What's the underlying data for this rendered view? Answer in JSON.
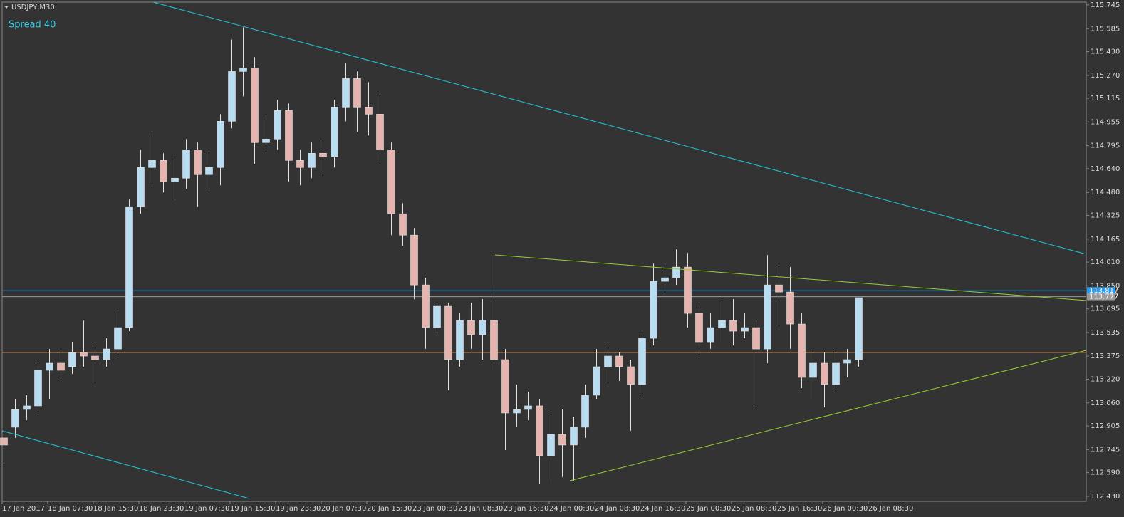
{
  "chart_data": {
    "type": "candlestick",
    "title": "USDJPY,M30",
    "annotation": "Spread 40",
    "categories": [
      "17 Jan 2017",
      null,
      null,
      null,
      "18 Jan 07:30",
      null,
      null,
      null,
      "18 Jan 15:30",
      null,
      null,
      null,
      "18 Jan 23:30",
      null,
      null,
      null,
      "19 Jan 07:30",
      null,
      null,
      null,
      "19 Jan 15:30",
      null,
      null,
      null,
      "19 Jan 23:30",
      null,
      null,
      null,
      "20 Jan 07:30",
      null,
      null,
      null,
      "20 Jan 15:30",
      null,
      null,
      null,
      "23 Jan 00:30",
      null,
      null,
      null,
      "23 Jan 08:30",
      null,
      null,
      null,
      "23 Jan 16:30",
      null,
      null,
      null,
      "24 Jan 00:30",
      null,
      null,
      null,
      "24 Jan 08:30",
      null,
      null,
      null,
      "24 Jan 16:30",
      null,
      null,
      null,
      "25 Jan 00:30",
      null,
      null,
      null,
      "25 Jan 08:30",
      null,
      null,
      null,
      "25 Jan 16:30",
      null,
      null,
      null,
      "26 Jan 00:30",
      null,
      null,
      null,
      "26 Jan 08:30"
    ],
    "open": [
      112.824,
      112.896,
      113.016,
      113.04,
      113.28,
      113.328,
      113.304,
      113.4,
      113.376,
      113.352,
      113.424,
      113.568,
      114.384,
      114.648,
      114.696,
      114.552,
      114.576,
      114.768,
      114.6,
      114.648,
      114.96,
      115.296,
      115.32,
      114.816,
      114.84,
      115.032,
      114.696,
      114.648,
      114.744,
      114.72,
      115.056,
      115.248,
      115.056,
      115.008,
      114.768,
      114.336,
      114.192,
      113.856,
      113.568,
      113.712,
      113.352,
      113.616,
      113.52,
      113.616,
      113.352,
      112.992,
      113.016,
      113.04,
      112.704,
      112.848,
      112.776,
      112.896,
      113.112,
      113.304,
      113.376,
      113.304,
      113.184,
      113.496,
      113.88,
      113.904,
      113.976,
      113.664,
      113.472,
      113.568,
      113.616,
      113.544,
      113.568,
      113.424,
      113.856,
      113.808,
      113.592,
      113.232,
      113.328,
      113.184,
      113.328,
      113.352,
      null
    ],
    "high": [
      112.872,
      113.088,
      113.112,
      113.352,
      113.424,
      113.4,
      113.472,
      113.616,
      113.448,
      113.496,
      113.688,
      114.432,
      114.768,
      114.864,
      114.744,
      114.72,
      114.84,
      114.816,
      114.744,
      115.008,
      115.512,
      115.594,
      115.392,
      115.008,
      115.104,
      115.08,
      114.768,
      114.816,
      114.84,
      115.104,
      115.354,
      115.296,
      115.224,
      115.128,
      114.816,
      114.408,
      114.24,
      113.904,
      113.736,
      113.736,
      113.664,
      113.736,
      113.76,
      114.058,
      113.424,
      113.184,
      113.136,
      113.088,
      112.992,
      113.016,
      112.968,
      113.184,
      113.424,
      113.448,
      113.4,
      113.352,
      113.52,
      114.0,
      114.0,
      114.096,
      114.072,
      113.712,
      113.664,
      113.76,
      113.76,
      113.664,
      113.616,
      114.058,
      113.976,
      113.976,
      113.664,
      113.424,
      113.4,
      113.424,
      113.424,
      113.77,
      null
    ],
    "low": [
      112.632,
      112.824,
      112.944,
      112.992,
      113.088,
      113.208,
      113.256,
      113.304,
      113.184,
      113.304,
      113.376,
      113.544,
      114.336,
      114.528,
      114.48,
      114.432,
      114.504,
      114.384,
      114.504,
      114.528,
      114.912,
      115.128,
      114.672,
      114.744,
      114.768,
      114.552,
      114.528,
      114.576,
      114.6,
      114.648,
      114.96,
      114.888,
      114.864,
      114.696,
      114.192,
      114.12,
      113.76,
      113.424,
      113.52,
      113.146,
      113.304,
      113.424,
      113.352,
      113.28,
      112.742,
      112.896,
      112.944,
      112.512,
      112.512,
      112.56,
      112.536,
      112.824,
      113.088,
      113.184,
      113.208,
      112.872,
      113.112,
      113.448,
      113.784,
      113.856,
      113.568,
      113.376,
      113.424,
      113.472,
      113.448,
      113.496,
      113.016,
      113.328,
      113.568,
      113.424,
      113.16,
      113.088,
      113.03,
      113.16,
      113.232,
      113.304,
      null
    ],
    "close": [
      112.776,
      113.016,
      113.04,
      113.28,
      113.328,
      113.28,
      113.4,
      113.376,
      113.352,
      113.424,
      113.568,
      114.384,
      114.648,
      114.696,
      114.552,
      114.576,
      114.768,
      114.6,
      114.648,
      114.96,
      115.296,
      115.32,
      114.816,
      114.84,
      115.032,
      114.696,
      114.648,
      114.744,
      114.72,
      115.056,
      115.248,
      115.056,
      115.008,
      114.768,
      114.336,
      114.192,
      113.856,
      113.568,
      113.712,
      113.352,
      113.616,
      113.52,
      113.616,
      113.352,
      112.992,
      113.016,
      113.04,
      112.704,
      112.848,
      112.776,
      112.896,
      113.112,
      113.304,
      113.376,
      113.304,
      113.184,
      113.496,
      113.88,
      113.904,
      113.976,
      113.664,
      113.472,
      113.568,
      113.616,
      113.544,
      113.568,
      113.424,
      113.856,
      113.808,
      113.592,
      113.232,
      113.328,
      113.184,
      113.328,
      113.352,
      113.77,
      null
    ],
    "up_color": "#b8dcf2",
    "down_color": "#e6b4ae",
    "wick_color": "#e0e0e0",
    "ylim": [
      112.396,
      115.764
    ],
    "yticks": [
      115.745,
      {
        "value": 115.585,
        "label": "115.585"
      },
      {
        "value": 115.43,
        "label": "115.430"
      },
      {
        "value": 115.27,
        "label": "115.270"
      },
      115.115,
      114.955,
      114.795,
      {
        "value": 114.64,
        "label": "114.640"
      },
      {
        "value": 114.48,
        "label": "114.480"
      },
      114.325,
      114.165,
      {
        "value": 114.01,
        "label": "114.010"
      },
      {
        "value": 113.85,
        "label": "113.850"
      },
      113.695,
      113.535,
      113.375,
      {
        "value": 113.22,
        "label": "113.220"
      },
      {
        "value": 113.06,
        "label": "113.060"
      },
      112.905,
      112.745,
      {
        "value": 112.59,
        "label": "112.590"
      },
      {
        "value": 112.43,
        "label": "112.430"
      }
    ],
    "levels": [
      {
        "value": 113.817,
        "label": "113.817",
        "color": "#2f9be8"
      },
      {
        "value": 113.777,
        "label": "113.777",
        "color": "#9a9a9a"
      },
      {
        "value": 113.401,
        "color": "#e8a070"
      }
    ]
  }
}
